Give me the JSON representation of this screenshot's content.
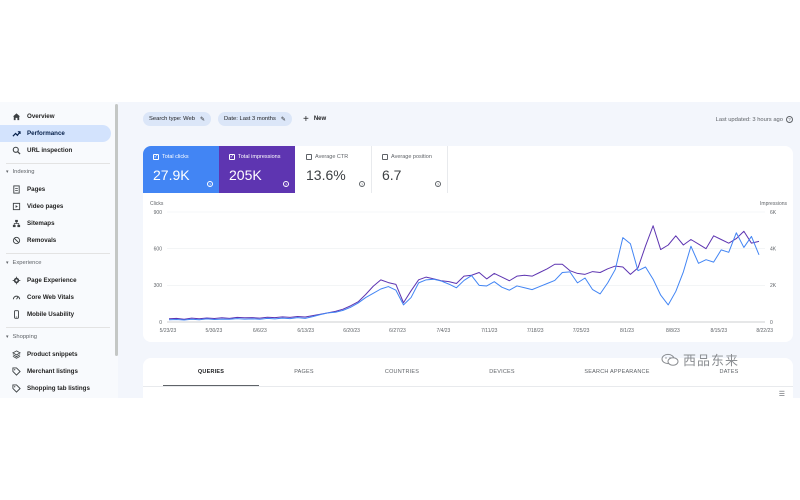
{
  "sidebar": {
    "items": [
      {
        "label": "Overview",
        "icon": "home-icon"
      },
      {
        "label": "Performance",
        "icon": "trending-up-icon",
        "active": true
      },
      {
        "label": "URL inspection",
        "icon": "search-icon"
      }
    ],
    "sections": [
      {
        "title": "Indexing",
        "items": [
          {
            "label": "Pages",
            "icon": "pages-icon"
          },
          {
            "label": "Video pages",
            "icon": "video-icon"
          },
          {
            "label": "Sitemaps",
            "icon": "sitemap-icon"
          },
          {
            "label": "Removals",
            "icon": "removals-icon"
          }
        ]
      },
      {
        "title": "Experience",
        "items": [
          {
            "label": "Page Experience",
            "icon": "gear-icon"
          },
          {
            "label": "Core Web Vitals",
            "icon": "gauge-icon"
          },
          {
            "label": "Mobile Usability",
            "icon": "phone-icon"
          }
        ]
      },
      {
        "title": "Shopping",
        "items": [
          {
            "label": "Product snippets",
            "icon": "stack-icon"
          },
          {
            "label": "Merchant listings",
            "icon": "tag-icon"
          },
          {
            "label": "Shopping tab listings",
            "icon": "tag-icon"
          }
        ]
      }
    ]
  },
  "toolbar": {
    "search_type": "Search type: Web",
    "date": "Date: Last 3 months",
    "new_label": "New",
    "last_updated": "Last updated: 3 hours ago"
  },
  "metrics": {
    "clicks": {
      "label": "Total clicks",
      "value": "27.9K",
      "checked": true
    },
    "impressions": {
      "label": "Total impressions",
      "value": "205K",
      "checked": true
    },
    "ctr": {
      "label": "Average CTR",
      "value": "13.6%",
      "checked": false
    },
    "position": {
      "label": "Average position",
      "value": "6.7",
      "checked": false
    }
  },
  "chart_data": {
    "type": "line",
    "left_axis_label": "Clicks",
    "right_axis_label": "Impressions",
    "left_ticks": [
      "900",
      "600",
      "300",
      "0"
    ],
    "right_ticks": [
      "6K",
      "4K",
      "2K",
      "0"
    ],
    "ylim_left": [
      0,
      900
    ],
    "ylim_right": [
      0,
      6000
    ],
    "x_ticks": [
      "5/23/23",
      "5/30/23",
      "6/6/23",
      "6/13/23",
      "6/20/23",
      "6/27/23",
      "7/4/23",
      "7/11/23",
      "7/18/23",
      "7/25/23",
      "8/1/23",
      "8/8/23",
      "8/15/23",
      "8/22/23"
    ],
    "colors": {
      "clicks": "#4285f4",
      "impressions": "#5e35b1"
    },
    "series": [
      {
        "name": "Clicks",
        "axis": "left",
        "values": [
          18,
          20,
          16,
          22,
          18,
          26,
          20,
          24,
          22,
          28,
          24,
          26,
          22,
          30,
          26,
          32,
          28,
          36,
          30,
          44,
          60,
          75,
          80,
          95,
          120,
          155,
          200,
          235,
          270,
          290,
          260,
          140,
          200,
          320,
          345,
          350,
          335,
          310,
          280,
          340,
          380,
          300,
          295,
          330,
          285,
          260,
          295,
          280,
          265,
          290,
          315,
          340,
          405,
          410,
          320,
          360,
          265,
          230,
          320,
          430,
          690,
          640,
          420,
          450,
          350,
          220,
          140,
          250,
          410,
          620,
          480,
          510,
          490,
          590,
          570,
          730,
          610,
          700,
          550
        ]
      },
      {
        "name": "Impressions",
        "axis": "right",
        "values": [
          180,
          200,
          150,
          210,
          180,
          220,
          190,
          230,
          200,
          250,
          230,
          240,
          210,
          260,
          240,
          280,
          250,
          300,
          270,
          350,
          420,
          500,
          580,
          700,
          880,
          1100,
          1500,
          1950,
          2300,
          2150,
          2050,
          1050,
          1700,
          2300,
          2450,
          2350,
          2250,
          2200,
          2100,
          2500,
          2550,
          2700,
          2350,
          2650,
          2450,
          2250,
          2500,
          2550,
          2500,
          2700,
          2900,
          3150,
          3150,
          2800,
          2650,
          2600,
          2750,
          2700,
          2900,
          3050,
          3000,
          2600,
          2950,
          4150,
          5250,
          3950,
          4200,
          4700,
          4200,
          4500,
          4250,
          4000,
          4700,
          4500,
          4300,
          4550,
          4950,
          4300,
          4400
        ]
      }
    ]
  },
  "tabs": [
    {
      "label": "QUERIES",
      "active": true
    },
    {
      "label": "PAGES"
    },
    {
      "label": "COUNTRIES"
    },
    {
      "label": "DEVICES"
    },
    {
      "label": "SEARCH APPEARANCE"
    },
    {
      "label": "DATES"
    }
  ],
  "watermark": "西品东来"
}
